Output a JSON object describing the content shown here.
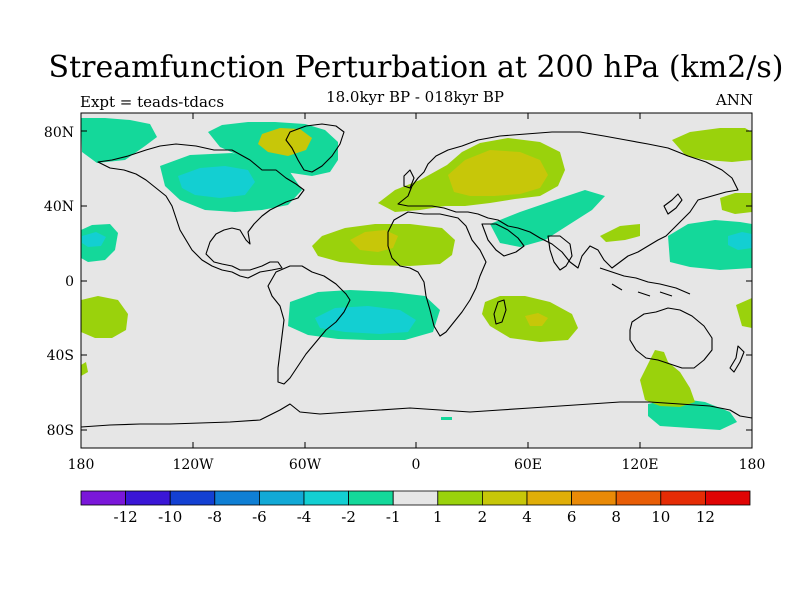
{
  "map": {
    "title": "Streamfunction Perturbation at 200 hPa (km2/s)",
    "subtitle": "18.0kyr BP - 018kyr BP",
    "left_label": "Expt = teads-tdacs",
    "right_label": "ANN",
    "lat_labels": [
      "80N",
      "40N",
      "0",
      "40S",
      "80S"
    ],
    "lon_labels": [
      "180",
      "120W",
      "60W",
      "0",
      "60E",
      "120E",
      "180"
    ],
    "colorbar": {
      "levels": [
        "-12",
        "-10",
        "-8",
        "-6",
        "-4",
        "-2",
        "-1",
        "1",
        "2",
        "4",
        "6",
        "8",
        "10",
        "12"
      ],
      "colors": [
        "#7a17d9",
        "#3a16d6",
        "#1340d2",
        "#0f7fd4",
        "#12a9d6",
        "#13cfd2",
        "#14d89a",
        "#e6e6e6",
        "#9ad20c",
        "#c7c709",
        "#e0ae08",
        "#e98a07",
        "#e85d06",
        "#e52c05",
        "#e00404"
      ]
    },
    "regions": [
      {
        "name": "north-america-low",
        "value": -4
      },
      {
        "name": "north-pacific-low",
        "value": -2
      },
      {
        "name": "arctic-canada-high",
        "value": 4
      },
      {
        "name": "eurasia-high",
        "value": 4
      },
      {
        "name": "tropical-atlantic-high",
        "value": 4
      },
      {
        "name": "south-america-low",
        "value": -4
      },
      {
        "name": "indian-ocean-high",
        "value": 4
      },
      {
        "name": "australia-high",
        "value": 2
      }
    ]
  }
}
